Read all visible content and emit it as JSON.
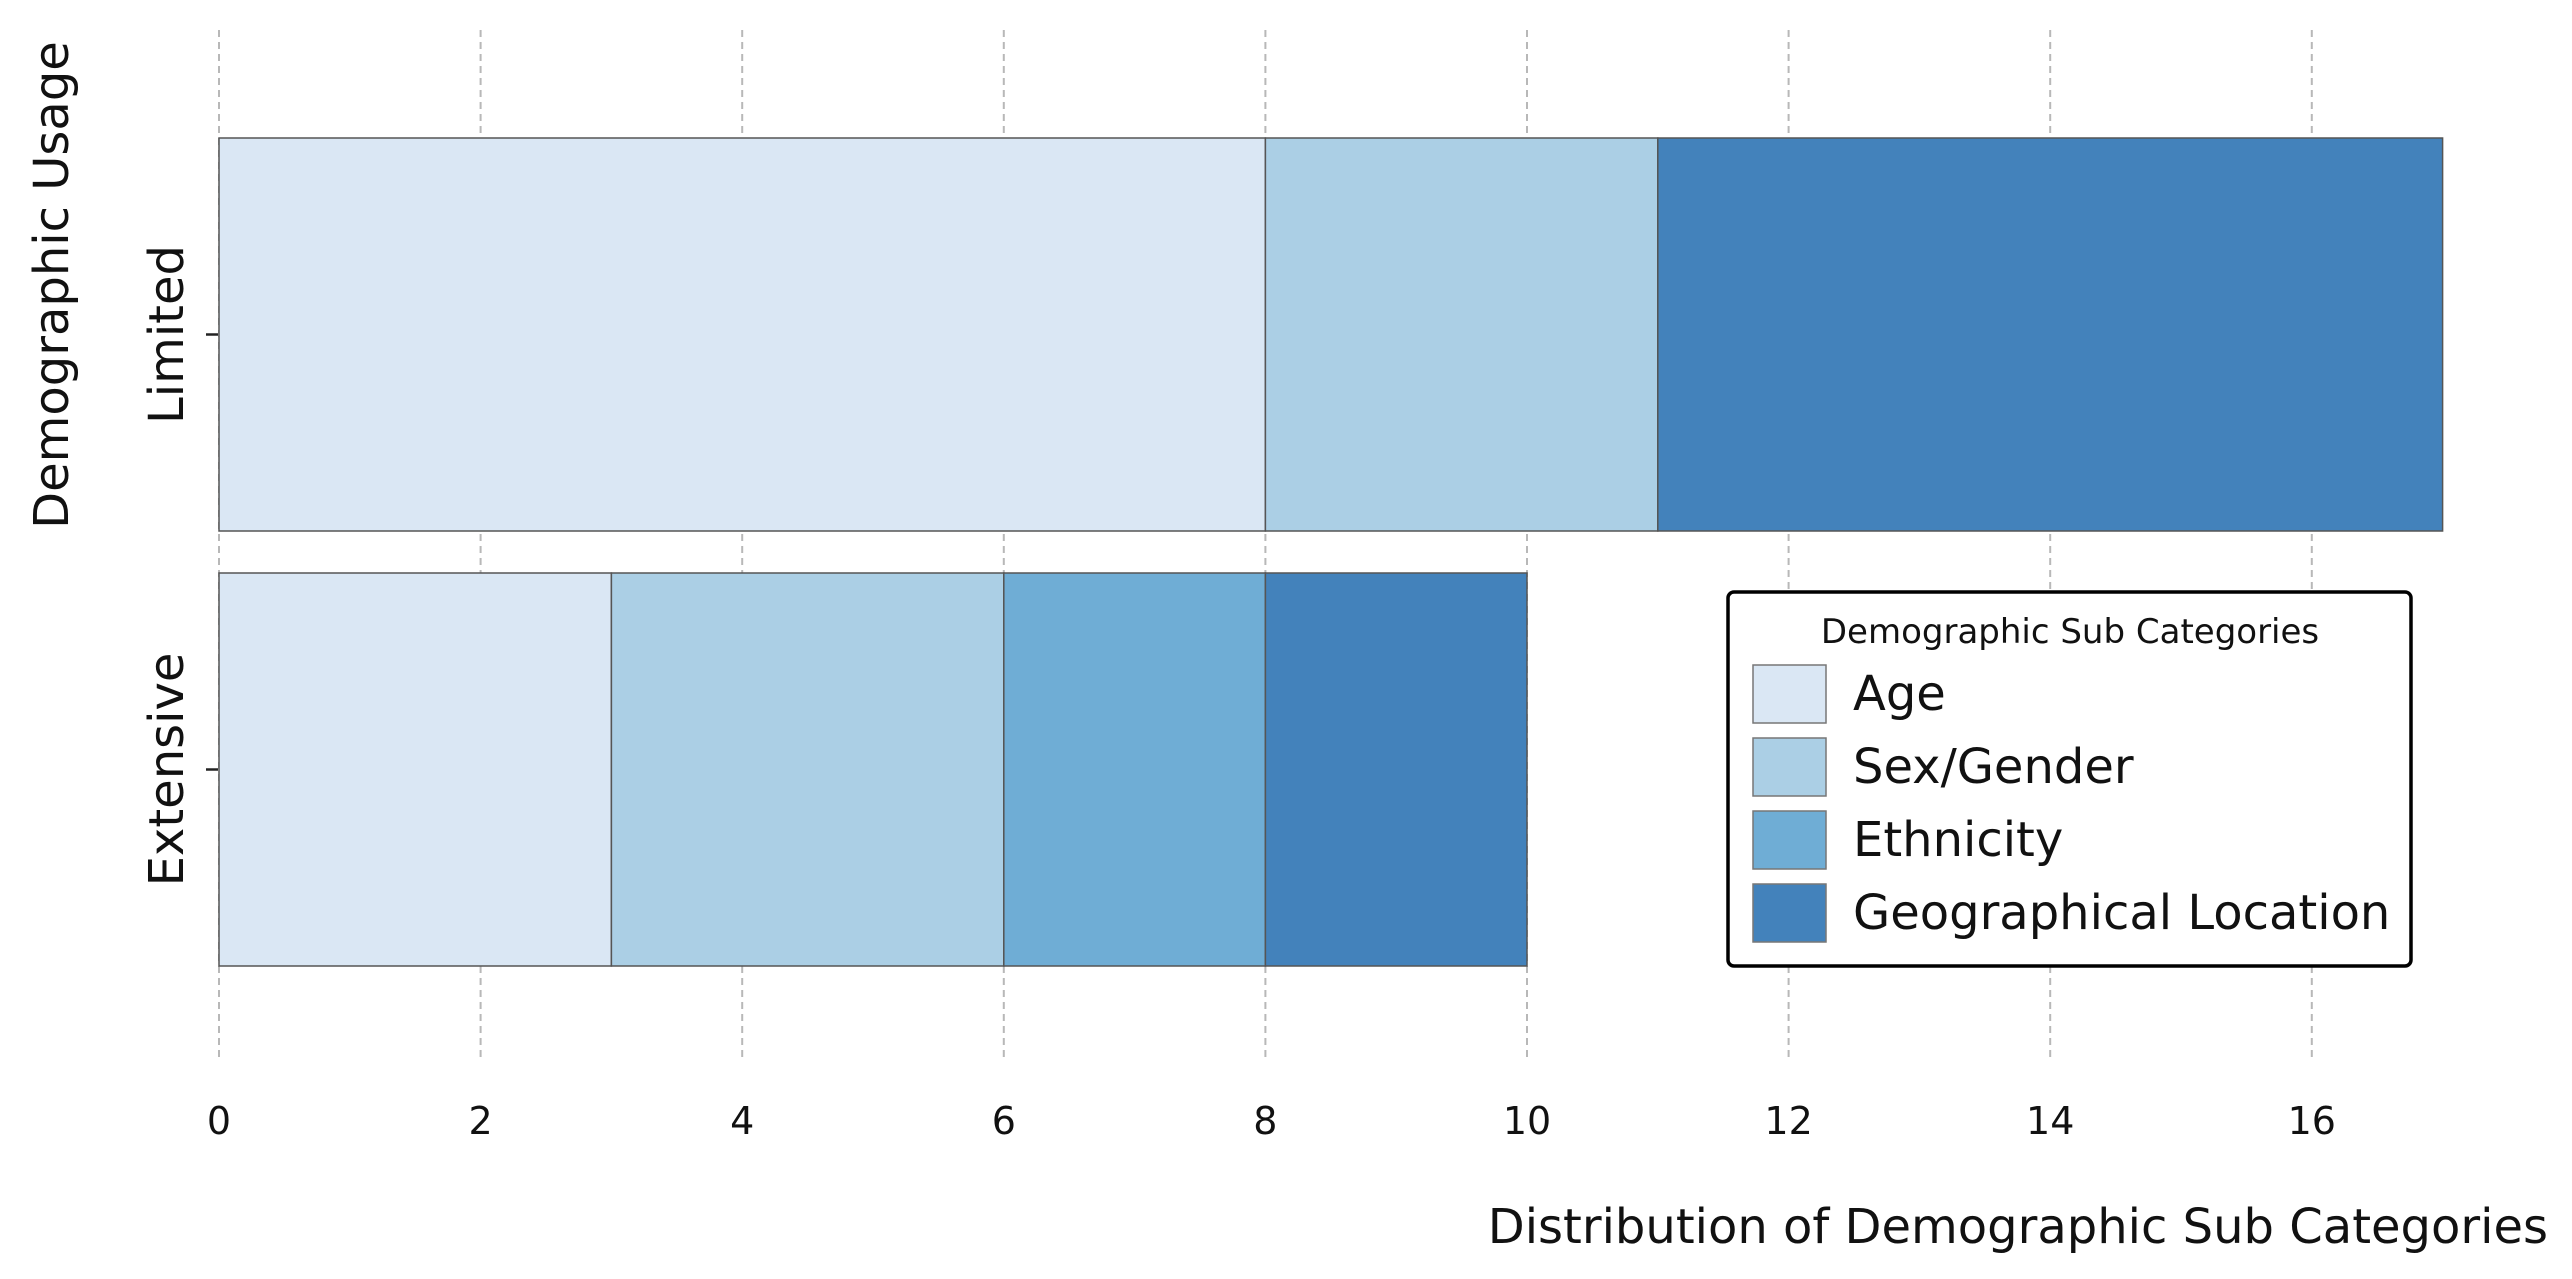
{
  "chart_data": {
    "type": "bar",
    "orientation": "horizontal",
    "stacked": true,
    "categories": [
      "Limited",
      "Extensive"
    ],
    "series": [
      {
        "name": "Age",
        "values": [
          8,
          3
        ],
        "color": "#dae7f4"
      },
      {
        "name": "Sex/Gender",
        "values": [
          3,
          3
        ],
        "color": "#abcfe5"
      },
      {
        "name": "Ethnicity",
        "values": [
          0,
          2
        ],
        "color": "#6fadd5"
      },
      {
        "name": "Geographical Location",
        "values": [
          6,
          2
        ],
        "color": "#4382bb"
      }
    ],
    "xlabel": "Distribution of Demographic Sub Categories",
    "ylabel": "Demographic Usage",
    "xlim": [
      0,
      17
    ],
    "xticks": [
      0,
      2,
      4,
      6,
      8,
      10,
      12,
      14,
      16
    ],
    "grid": "x-dashed",
    "legend": {
      "title": "Demographic Sub Categories",
      "placement": "lower-right"
    }
  }
}
